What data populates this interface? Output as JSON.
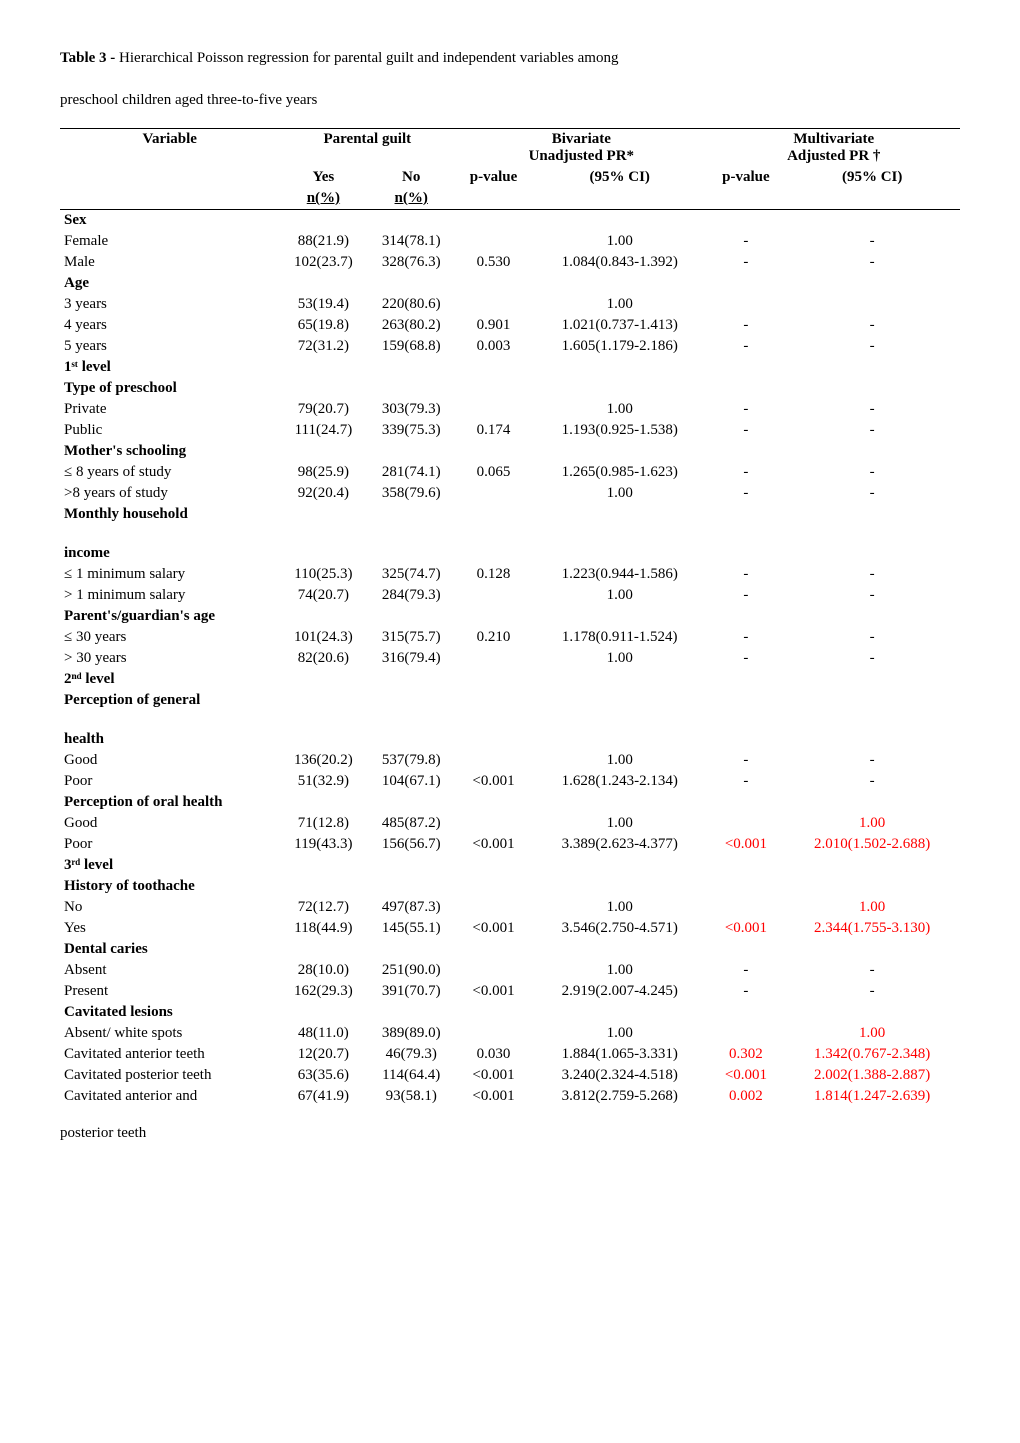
{
  "caption": {
    "line1_prefix": "Table 3 - ",
    "line1_rest": "Hierarchical Poisson regression for parental guilt and independent variables among",
    "line2": "preschool children aged three-to-five years"
  },
  "header": {
    "variable": "Variable",
    "parental_guilt": "Parental guilt",
    "bivariate": "Bivariate",
    "unadjusted_pr": "Unadjusted PR*",
    "multivariate": "Multivariate",
    "adjusted_pr": "Adjusted PR †",
    "yes": "Yes",
    "no": "No",
    "pvalue": "p-value",
    "ci": "(95% CI)",
    "npct": "n(%)"
  },
  "sections": [
    {
      "label": "Sex",
      "rows": [
        {
          "label": "Female",
          "yes": "88(21.9)",
          "no": "314(78.1)",
          "pv1": "",
          "ci1": "1.00",
          "pv2": "-",
          "ci2": "-"
        },
        {
          "label": "Male",
          "yes": "102(23.7)",
          "no": "328(76.3)",
          "pv1": "0.530",
          "ci1": "1.084(0.843-1.392)",
          "pv2": "-",
          "ci2": "-"
        }
      ]
    },
    {
      "label": "Age",
      "rows": [
        {
          "label": "3 years",
          "yes": "53(19.4)",
          "no": "220(80.6)",
          "pv1": "",
          "ci1": "1.00",
          "pv2": "",
          "ci2": ""
        },
        {
          "label": "4 years",
          "yes": "65(19.8)",
          "no": "263(80.2)",
          "pv1": "0.901",
          "ci1": "1.021(0.737-1.413)",
          "pv2": "-",
          "ci2": "-"
        },
        {
          "label": "5 years",
          "yes": "72(31.2)",
          "no": "159(68.8)",
          "pv1": "0.003",
          "ci1": "1.605(1.179-2.186)",
          "pv2": "-",
          "ci2": "-"
        }
      ]
    },
    {
      "label": "1ˢᵗ level",
      "rows": []
    },
    {
      "label": "Type of preschool",
      "rows": [
        {
          "label": "Private",
          "yes": "79(20.7)",
          "no": "303(79.3)",
          "pv1": "",
          "ci1": "1.00",
          "pv2": "-",
          "ci2": "-"
        },
        {
          "label": "Public",
          "yes": "111(24.7)",
          "no": "339(75.3)",
          "pv1": "0.174",
          "ci1": "1.193(0.925-1.538)",
          "pv2": "-",
          "ci2": "-"
        }
      ]
    },
    {
      "label": "Mother's schooling",
      "rows": [
        {
          "label": "≤ 8 years of study",
          "yes": "98(25.9)",
          "no": "281(74.1)",
          "pv1": "0.065",
          "ci1": "1.265(0.985-1.623)",
          "pv2": "-",
          "ci2": "-"
        },
        {
          "label": ">8 years of study",
          "yes": "92(20.4)",
          "no": "358(79.6)",
          "pv1": "",
          "ci1": "1.00",
          "pv2": "-",
          "ci2": "-"
        }
      ]
    },
    {
      "label": "Monthly household",
      "rows": []
    },
    {
      "label": "income",
      "spacer_before": true,
      "rows": [
        {
          "label": "≤ 1 minimum salary",
          "yes": "110(25.3)",
          "no": "325(74.7)",
          "pv1": "0.128",
          "ci1": "1.223(0.944-1.586)",
          "pv2": "-",
          "ci2": "-"
        },
        {
          "label": "> 1 minimum salary",
          "yes": "74(20.7)",
          "no": "284(79.3)",
          "pv1": "",
          "ci1": "1.00",
          "pv2": "-",
          "ci2": "-"
        }
      ]
    },
    {
      "label": "Parent's/guardian's age",
      "rows": [
        {
          "label": "≤ 30 years",
          "yes": "101(24.3)",
          "no": "315(75.7)",
          "pv1": "0.210",
          "ci1": "1.178(0.911-1.524)",
          "pv2": "-",
          "ci2": "-"
        },
        {
          "label": "> 30 years",
          "yes": "82(20.6)",
          "no": "316(79.4)",
          "pv1": "",
          "ci1": "1.00",
          "pv2": "-",
          "ci2": "-"
        }
      ]
    },
    {
      "label": "2ⁿᵈ level",
      "rows": []
    },
    {
      "label": "Perception of general",
      "rows": []
    },
    {
      "label": "health",
      "spacer_before": true,
      "rows": [
        {
          "label": "Good",
          "yes": "136(20.2)",
          "no": "537(79.8)",
          "pv1": "",
          "ci1": "1.00",
          "pv2": "-",
          "ci2": "-"
        },
        {
          "label": "Poor",
          "yes": "51(32.9)",
          "no": "104(67.1)",
          "pv1": "<0.001",
          "ci1": "1.628(1.243-2.134)",
          "pv2": "-",
          "ci2": "-"
        }
      ]
    },
    {
      "label": "Perception of oral health",
      "rows": [
        {
          "label": "Good",
          "yes": "71(12.8)",
          "no": "485(87.2)",
          "pv1": "",
          "ci1": "1.00",
          "pv2": "",
          "ci2": "1.00",
          "ci2_red": true
        },
        {
          "label": "Poor",
          "yes": "119(43.3)",
          "no": "156(56.7)",
          "pv1": "<0.001",
          "ci1": "3.389(2.623-4.377)",
          "pv2": "<0.001",
          "ci2": "2.010(1.502-2.688)",
          "pv2_red": true,
          "ci2_red": true
        }
      ]
    },
    {
      "label": "3ʳᵈ level",
      "rows": []
    },
    {
      "label": "History of toothache",
      "rows": [
        {
          "label": "No",
          "yes": "72(12.7)",
          "no": "497(87.3)",
          "pv1": "",
          "ci1": "1.00",
          "pv2": "",
          "ci2": "1.00",
          "ci2_red": true
        },
        {
          "label": "Yes",
          "yes": "118(44.9)",
          "no": "145(55.1)",
          "pv1": "<0.001",
          "ci1": "3.546(2.750-4.571)",
          "pv2": "<0.001",
          "ci2": "2.344(1.755-3.130)",
          "pv2_red": true,
          "ci2_red": true
        }
      ]
    },
    {
      "label": "Dental caries",
      "rows": [
        {
          "label": "Absent",
          "yes": "28(10.0)",
          "no": "251(90.0)",
          "pv1": "",
          "ci1": "1.00",
          "pv2": "-",
          "ci2": "-"
        },
        {
          "label": "Present",
          "yes": "162(29.3)",
          "no": "391(70.7)",
          "pv1": "<0.001",
          "ci1": "2.919(2.007-4.245)",
          "pv2": "-",
          "ci2": "-"
        }
      ]
    },
    {
      "label": "Cavitated lesions",
      "rows": [
        {
          "label": "Absent/ white spots",
          "yes": "48(11.0)",
          "no": "389(89.0)",
          "pv1": "",
          "ci1": "1.00",
          "pv2": "",
          "ci2": "1.00",
          "ci2_red": true
        },
        {
          "label": "Cavitated anterior teeth",
          "yes": "12(20.7)",
          "no": "46(79.3)",
          "pv1": "0.030",
          "ci1": "1.884(1.065-3.331)",
          "pv2": "0.302",
          "ci2": "1.342(0.767-2.348)",
          "pv2_red": true,
          "ci2_red": true
        },
        {
          "label": "Cavitated posterior teeth",
          "yes": "63(35.6)",
          "no": "114(64.4)",
          "pv1": "<0.001",
          "ci1": "3.240(2.324-4.518)",
          "pv2": "<0.001",
          "ci2": "2.002(1.388-2.887)",
          "pv2_red": true,
          "ci2_red": true
        },
        {
          "label": "Cavitated anterior and",
          "yes": "67(41.9)",
          "no": "93(58.1)",
          "pv1": "<0.001",
          "ci1": "3.812(2.759-5.268)",
          "pv2": "0.002",
          "ci2": "1.814(1.247-2.639)",
          "pv2_red": true,
          "ci2_red": true
        }
      ]
    }
  ],
  "tail": "posterior teeth",
  "colors": {
    "red": "#ff0000",
    "text": "#000000",
    "bg": "#ffffff"
  }
}
